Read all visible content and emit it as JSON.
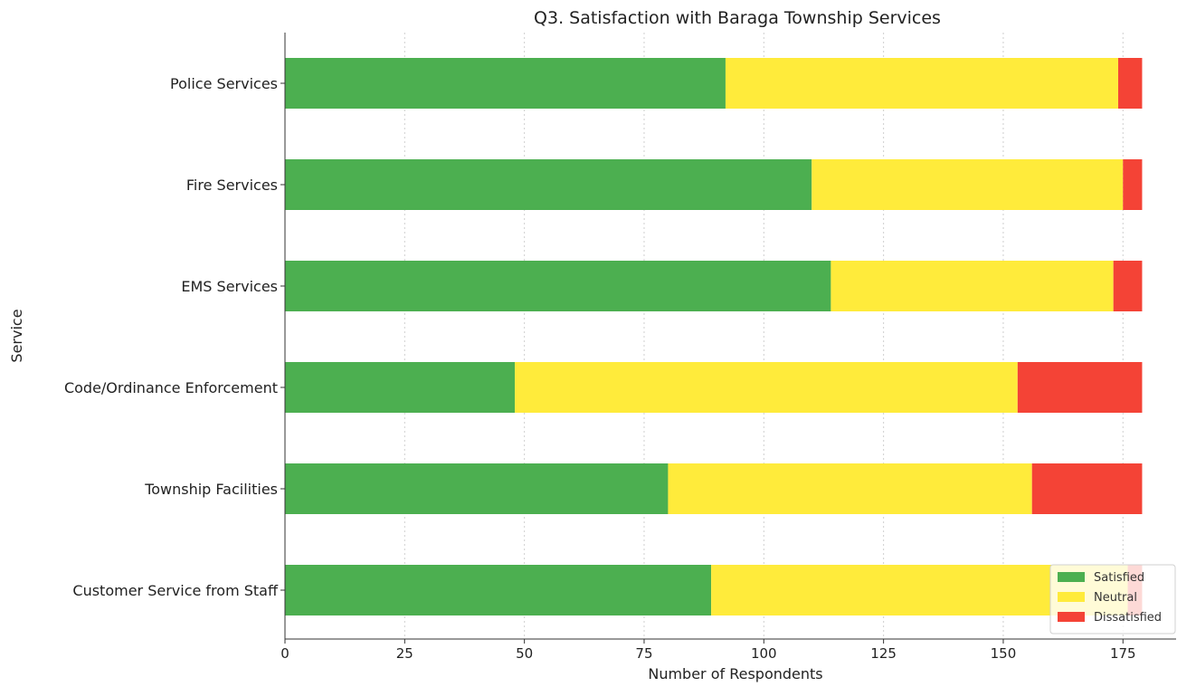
{
  "chart_data": {
    "type": "bar",
    "orientation": "horizontal",
    "stacked": true,
    "title": "Q3. Satisfaction with Baraga Township Services",
    "xlabel": "Number of Respondents",
    "ylabel": "Service",
    "categories": [
      "Police Services",
      "Fire Services",
      "EMS Services",
      "Code/Ordinance Enforcement",
      "Township Facilities",
      "Customer Service from Staff"
    ],
    "series": [
      {
        "name": "Satisfied",
        "color": "#4caf50",
        "values": [
          92,
          110,
          114,
          48,
          80,
          89
        ]
      },
      {
        "name": "Neutral",
        "color": "#ffeb3b",
        "values": [
          82,
          65,
          59,
          105,
          76,
          87
        ]
      },
      {
        "name": "Dissatisfied",
        "color": "#f44336",
        "values": [
          5,
          4,
          6,
          26,
          23,
          3
        ]
      }
    ],
    "xlim": [
      0,
      180
    ],
    "xticks": [
      0,
      25,
      50,
      75,
      100,
      125,
      150,
      175
    ],
    "grid": "x",
    "legend_position": "bottom-right"
  }
}
